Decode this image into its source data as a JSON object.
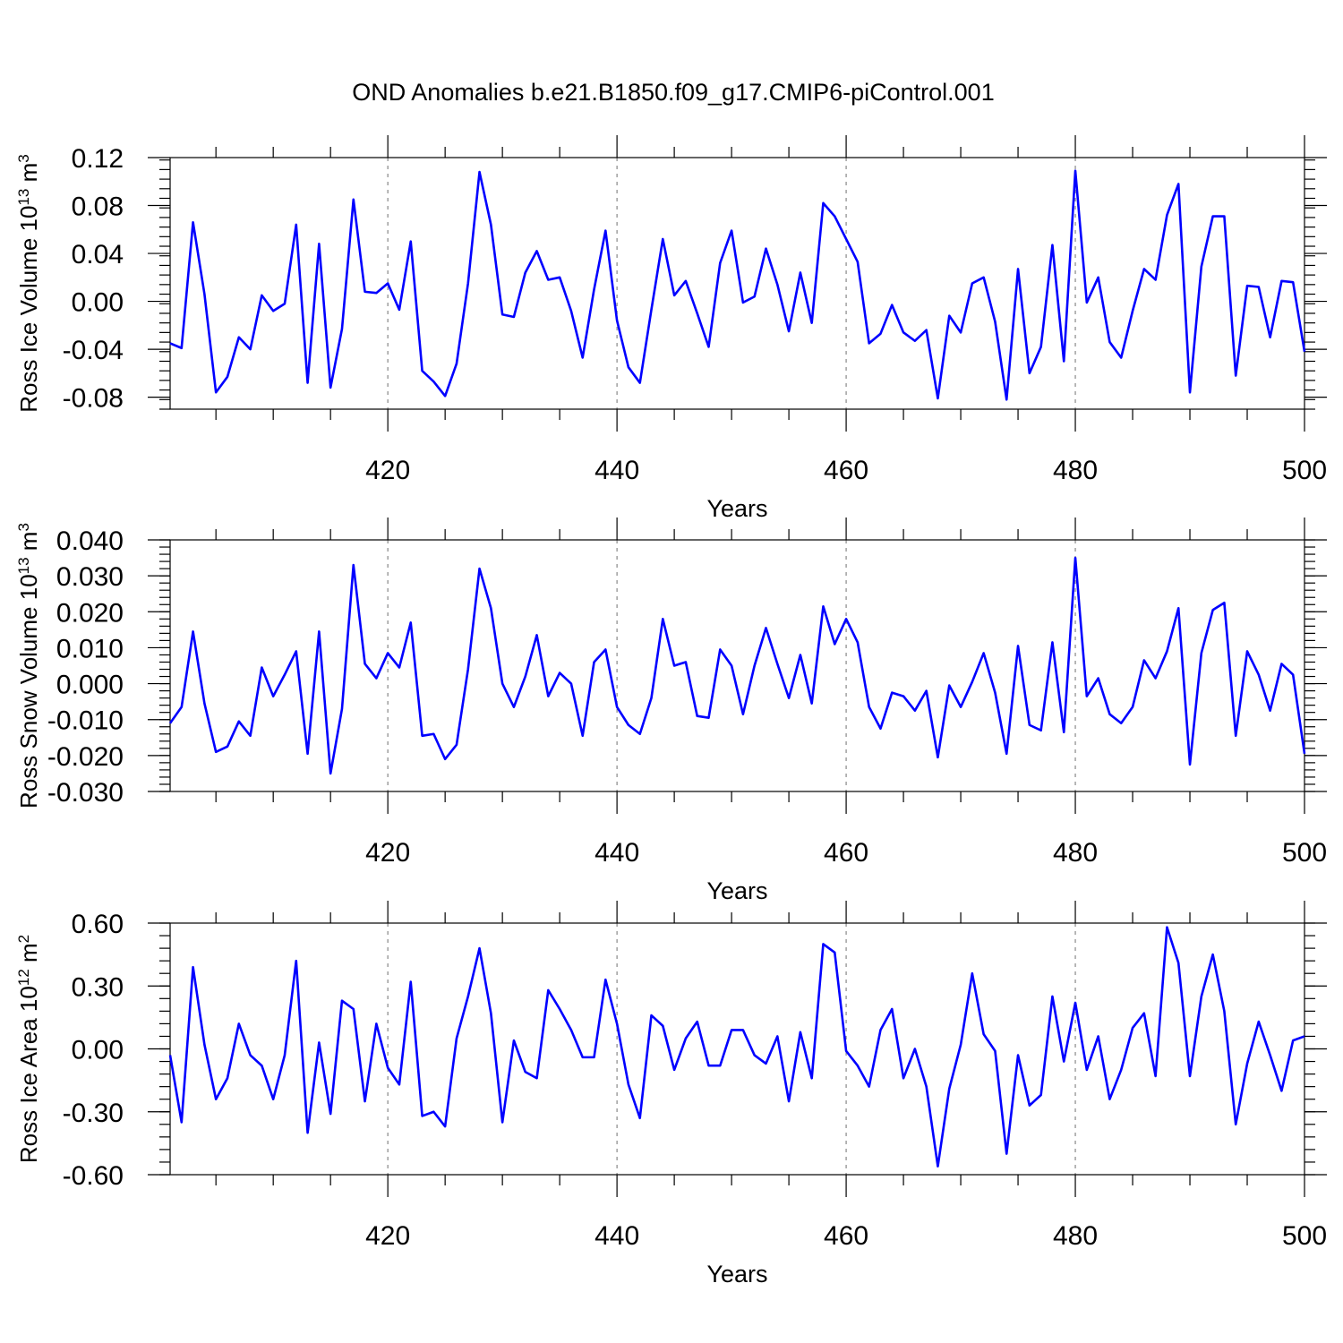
{
  "figure_title": "OND Anomalies b.e21.B1850.f09_g17.CMIP6-piControl.001",
  "chart_data": [
    {
      "type": "line",
      "title": "OND Anomalies b.e21.B1850.f09_g17.CMIP6-piControl.001",
      "xlabel": "Years",
      "ylabel_text": "Ross Ice Volume 10",
      "ylabel_sup": "13",
      "ylabel_unit": " m",
      "ylabel_unit_sup": "3",
      "xlim": [
        401,
        500
      ],
      "ylim": [
        -0.09,
        0.12
      ],
      "xticks": [
        420,
        440,
        460,
        480,
        500
      ],
      "xtick_labels": [
        "420",
        "440",
        "460",
        "480",
        "500"
      ],
      "yticks": [
        -0.08,
        -0.04,
        0.0,
        0.04,
        0.08,
        0.12
      ],
      "ytick_labels": [
        "-0.08",
        "-0.04",
        "0.00",
        "0.04",
        "0.08",
        "0.12"
      ],
      "grid": "vertical dashed at major x ticks",
      "color": "#0000ff",
      "x_start": 401,
      "values": [
        -0.035,
        -0.039,
        0.066,
        0.006,
        -0.076,
        -0.063,
        -0.03,
        -0.04,
        0.005,
        -0.008,
        -0.002,
        0.064,
        -0.068,
        0.048,
        -0.072,
        -0.023,
        0.085,
        0.008,
        0.007,
        0.015,
        -0.007,
        0.05,
        -0.058,
        -0.067,
        -0.079,
        -0.052,
        0.015,
        0.108,
        0.064,
        -0.011,
        -0.013,
        0.024,
        0.042,
        0.018,
        0.02,
        -0.008,
        -0.047,
        0.01,
        0.059,
        -0.016,
        -0.055,
        -0.068,
        -0.007,
        0.052,
        0.005,
        0.017,
        -0.01,
        -0.038,
        0.032,
        0.059,
        -0.001,
        0.004,
        0.044,
        0.014,
        -0.025,
        0.024,
        -0.018,
        0.082,
        0.071,
        0.052,
        0.033,
        -0.035,
        -0.027,
        -0.003,
        -0.026,
        -0.033,
        -0.024,
        -0.081,
        -0.012,
        -0.026,
        0.015,
        0.02,
        -0.017,
        -0.082,
        0.027,
        -0.06,
        -0.038,
        0.047,
        -0.05,
        0.109,
        -0.001,
        0.02,
        -0.034,
        -0.047,
        -0.008,
        0.027,
        0.018,
        0.072,
        0.098,
        -0.076,
        0.029,
        0.071,
        0.071,
        -0.062,
        0.013,
        0.012,
        -0.03,
        0.017,
        0.016,
        -0.042
      ]
    },
    {
      "type": "line",
      "xlabel": "Years",
      "ylabel_text": "Ross Snow Volume 10",
      "ylabel_sup": "13",
      "ylabel_unit": " m",
      "ylabel_unit_sup": "3",
      "xlim": [
        401,
        500
      ],
      "ylim": [
        -0.03,
        0.04
      ],
      "xticks": [
        420,
        440,
        460,
        480,
        500
      ],
      "xtick_labels": [
        "420",
        "440",
        "460",
        "480",
        "500"
      ],
      "yticks": [
        -0.03,
        -0.02,
        -0.01,
        0.0,
        0.01,
        0.02,
        0.03,
        0.04
      ],
      "ytick_labels": [
        "-0.030",
        "-0.020",
        "-0.010",
        "0.000",
        "0.010",
        "0.020",
        "0.030",
        "0.040"
      ],
      "grid": "vertical dashed at major x ticks",
      "color": "#0000ff",
      "x_start": 401,
      "values": [
        -0.011,
        -0.0065,
        0.0145,
        -0.0055,
        -0.019,
        -0.0175,
        -0.0105,
        -0.0145,
        0.0045,
        -0.0035,
        0.0025,
        0.009,
        -0.0195,
        0.0145,
        -0.025,
        -0.007,
        0.033,
        0.0055,
        0.0015,
        0.0085,
        0.0045,
        0.017,
        -0.0145,
        -0.014,
        -0.021,
        -0.017,
        0.004,
        0.032,
        0.021,
        0.0,
        -0.0065,
        0.002,
        0.0135,
        -0.0035,
        0.003,
        0.0,
        -0.0145,
        0.006,
        0.0095,
        -0.0065,
        -0.0115,
        -0.014,
        -0.004,
        0.018,
        0.005,
        0.006,
        -0.009,
        -0.0095,
        0.0095,
        0.005,
        -0.0085,
        0.005,
        0.0155,
        0.0055,
        -0.004,
        0.008,
        -0.0055,
        0.0215,
        0.011,
        0.018,
        0.0115,
        -0.0065,
        -0.0125,
        -0.0025,
        -0.0035,
        -0.0075,
        -0.002,
        -0.0205,
        -0.0005,
        -0.0065,
        0.0005,
        0.0085,
        -0.0025,
        -0.0195,
        0.0105,
        -0.0115,
        -0.013,
        0.0115,
        -0.0135,
        0.035,
        -0.0035,
        0.0015,
        -0.0085,
        -0.011,
        -0.0065,
        0.0065,
        0.0015,
        0.009,
        0.021,
        -0.0225,
        0.0085,
        0.0205,
        0.0225,
        -0.0145,
        0.009,
        0.0025,
        -0.0075,
        0.0055,
        0.0025,
        -0.0195
      ]
    },
    {
      "type": "line",
      "xlabel": "Years",
      "ylabel_text": "Ross Ice Area 10",
      "ylabel_sup": "12",
      "ylabel_unit": " m",
      "ylabel_unit_sup": "2",
      "xlim": [
        401,
        500
      ],
      "ylim": [
        -0.6,
        0.6
      ],
      "xticks": [
        420,
        440,
        460,
        480,
        500
      ],
      "xtick_labels": [
        "420",
        "440",
        "460",
        "480",
        "500"
      ],
      "yticks": [
        -0.6,
        -0.3,
        0.0,
        0.3,
        0.6
      ],
      "ytick_labels": [
        "-0.60",
        "-0.30",
        "0.00",
        "0.30",
        "0.60"
      ],
      "grid": "vertical dashed at major x ticks",
      "color": "#0000ff",
      "x_start": 401,
      "values": [
        -0.03,
        -0.35,
        0.39,
        0.02,
        -0.24,
        -0.14,
        0.12,
        -0.03,
        -0.08,
        -0.24,
        -0.03,
        0.42,
        -0.4,
        0.03,
        -0.31,
        0.23,
        0.19,
        -0.25,
        0.12,
        -0.09,
        -0.17,
        0.32,
        -0.32,
        -0.3,
        -0.37,
        0.05,
        0.25,
        0.48,
        0.17,
        -0.35,
        0.04,
        -0.11,
        -0.14,
        0.28,
        0.19,
        0.09,
        -0.04,
        -0.04,
        0.33,
        0.12,
        -0.17,
        -0.33,
        0.16,
        0.11,
        -0.1,
        0.05,
        0.13,
        -0.08,
        -0.08,
        0.09,
        0.09,
        -0.03,
        -0.07,
        0.06,
        -0.25,
        0.08,
        -0.14,
        0.5,
        0.46,
        -0.01,
        -0.08,
        -0.18,
        0.09,
        0.19,
        -0.14,
        0.0,
        -0.18,
        -0.56,
        -0.19,
        0.02,
        0.36,
        0.07,
        -0.01,
        -0.5,
        -0.03,
        -0.27,
        -0.22,
        0.25,
        -0.06,
        0.22,
        -0.1,
        0.06,
        -0.24,
        -0.1,
        0.1,
        0.17,
        -0.13,
        0.58,
        0.41,
        -0.13,
        0.25,
        0.45,
        0.18,
        -0.36,
        -0.07,
        0.13,
        -0.03,
        -0.2,
        0.04,
        0.06
      ]
    }
  ]
}
